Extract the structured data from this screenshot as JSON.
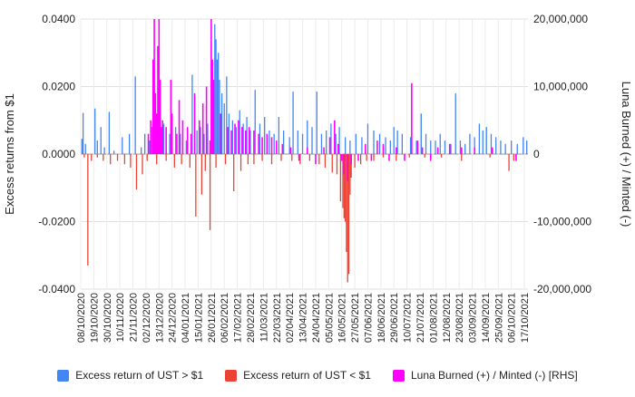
{
  "chart_data": {
    "type": "bar",
    "title": "",
    "ylabel": "Excess returns from $1",
    "y2label": "Luna Burned (+) / Minted (-)",
    "ylim": [
      -0.04,
      0.04
    ],
    "y2lim": [
      -20000000,
      20000000
    ],
    "yticks": [
      "0.0400",
      "0.0200",
      "0.0000",
      "-0.0200",
      "-0.0400"
    ],
    "y2ticks": [
      "20,000,000",
      "10,000,000",
      "0",
      "-10,000,000",
      "-20,000,000"
    ],
    "grid": true,
    "legend_position": "bottom",
    "xtick_labels": [
      "08/10/2020",
      "19/10/2020",
      "30/10/2020",
      "10/11/2020",
      "21/11/2020",
      "02/12/2020",
      "13/12/2020",
      "24/12/2020",
      "04/01/2021",
      "15/01/2021",
      "26/01/2021",
      "06/02/2021",
      "17/02/2021",
      "28/02/2021",
      "11/03/2021",
      "22/03/2021",
      "02/04/2021",
      "13/04/2021",
      "24/04/2021",
      "05/05/2021",
      "16/05/2021",
      "27/05/2021",
      "07/06/2021",
      "18/06/2021",
      "29/06/2021",
      "10/07/2021",
      "21/07/2021",
      "01/08/2021",
      "12/08/2021",
      "23/08/2021",
      "03/09/2021",
      "14/09/2021",
      "25/09/2021",
      "06/10/2021",
      "17/10/2021"
    ],
    "x_start": "08/10/2020",
    "x_end": "20/10/2021",
    "series": [
      {
        "name": "Excess return of UST > $1",
        "axis": "left",
        "color": "#4285f4",
        "points": [
          [
            "09/10/2020",
            0.0045
          ],
          [
            "10/10/2020",
            0.0122
          ],
          [
            "12/10/2020",
            0.003
          ],
          [
            "20/10/2020",
            0.0135
          ],
          [
            "22/10/2020",
            0.004
          ],
          [
            "25/10/2020",
            0.008
          ],
          [
            "28/10/2020",
            0.002
          ],
          [
            "01/11/2020",
            0.0125
          ],
          [
            "05/11/2020",
            0.001
          ],
          [
            "12/11/2020",
            0.005
          ],
          [
            "18/11/2020",
            0.006
          ],
          [
            "23/11/2020",
            0.023
          ],
          [
            "28/11/2020",
            0.002
          ],
          [
            "01/12/2020",
            0.006
          ],
          [
            "05/12/2020",
            0.004
          ],
          [
            "07/12/2020",
            0.008
          ],
          [
            "10/12/2020",
            0.005
          ],
          [
            "13/12/2020",
            0.01
          ],
          [
            "17/12/2020",
            0.009
          ],
          [
            "22/12/2020",
            0.006
          ],
          [
            "27/12/2020",
            0.008
          ],
          [
            "31/12/2020",
            0.006
          ],
          [
            "05/01/2021",
            0.004
          ],
          [
            "10/01/2021",
            0.0235
          ],
          [
            "14/01/2021",
            0.007
          ],
          [
            "17/01/2021",
            0.008
          ],
          [
            "20/01/2021",
            0.006
          ],
          [
            "23/01/2021",
            0.009
          ],
          [
            "27/01/2021",
            0.012
          ],
          [
            "29/01/2021",
            0.0385
          ],
          [
            "30/01/2021",
            0.034
          ],
          [
            "31/01/2021",
            0.028
          ],
          [
            "01/02/2021",
            0.03
          ],
          [
            "02/02/2021",
            0.022
          ],
          [
            "04/02/2021",
            0.018
          ],
          [
            "06/02/2021",
            0.015
          ],
          [
            "08/02/2021",
            0.023
          ],
          [
            "10/02/2021",
            0.012
          ],
          [
            "13/02/2021",
            0.01
          ],
          [
            "16/02/2021",
            0.008
          ],
          [
            "19/02/2021",
            0.013
          ],
          [
            "22/02/2021",
            0.009
          ],
          [
            "25/02/2021",
            0.011
          ],
          [
            "28/02/2021",
            0.007
          ],
          [
            "04/03/2021",
            0.019
          ],
          [
            "08/03/2021",
            0.009
          ],
          [
            "12/03/2021",
            0.011
          ],
          [
            "16/03/2021",
            0.007
          ],
          [
            "20/03/2021",
            0.006
          ],
          [
            "24/03/2021",
            0.011
          ],
          [
            "28/03/2021",
            0.007
          ],
          [
            "02/04/2021",
            0.005
          ],
          [
            "05/04/2021",
            0.0185
          ],
          [
            "09/04/2021",
            0.007
          ],
          [
            "13/04/2021",
            0.006
          ],
          [
            "17/04/2021",
            0.01
          ],
          [
            "21/04/2021",
            0.008
          ],
          [
            "25/04/2021",
            0.0185
          ],
          [
            "29/04/2021",
            0.006
          ],
          [
            "03/05/2021",
            0.007
          ],
          [
            "07/05/2021",
            0.009
          ],
          [
            "11/05/2021",
            0.006
          ],
          [
            "14/05/2021",
            0.008
          ],
          [
            "19/05/2021",
            0.005
          ],
          [
            "23/05/2021",
            0.004
          ],
          [
            "28/05/2021",
            0.006
          ],
          [
            "02/06/2021",
            0.005
          ],
          [
            "07/06/2021",
            0.009
          ],
          [
            "12/06/2021",
            0.007
          ],
          [
            "17/06/2021",
            0.006
          ],
          [
            "22/06/2021",
            0.005
          ],
          [
            "26/06/2021",
            0.004
          ],
          [
            "29/06/2021",
            0.008
          ],
          [
            "02/07/2021",
            0.007
          ],
          [
            "06/07/2021",
            0.006
          ],
          [
            "13/07/2021",
            0.005
          ],
          [
            "18/07/2021",
            0.004
          ],
          [
            "22/07/2021",
            0.012
          ],
          [
            "26/07/2021",
            0.006
          ],
          [
            "30/07/2021",
            0.004
          ],
          [
            "03/08/2021",
            0.004
          ],
          [
            "07/08/2021",
            0.006
          ],
          [
            "11/08/2021",
            0.004
          ],
          [
            "16/08/2021",
            0.003
          ],
          [
            "20/08/2021",
            0.018
          ],
          [
            "24/08/2021",
            0.004
          ],
          [
            "28/08/2021",
            0.003
          ],
          [
            "01/09/2021",
            0.006
          ],
          [
            "05/09/2021",
            0.005
          ],
          [
            "09/09/2021",
            0.009
          ],
          [
            "12/09/2021",
            0.007
          ],
          [
            "15/09/2021",
            0.008
          ],
          [
            "19/09/2021",
            0.006
          ],
          [
            "23/09/2021",
            0.005
          ],
          [
            "27/09/2021",
            0.004
          ],
          [
            "01/10/2021",
            0.003
          ],
          [
            "06/10/2021",
            0.004
          ],
          [
            "11/10/2021",
            0.003
          ],
          [
            "16/10/2021",
            0.005
          ],
          [
            "19/10/2021",
            0.004
          ]
        ]
      },
      {
        "name": "Excess return of UST < $1",
        "axis": "left",
        "color": "#ea4335",
        "points": [
          [
            "11/10/2020",
            -0.001
          ],
          [
            "14/10/2020",
            -0.033
          ],
          [
            "17/10/2020",
            -0.002
          ],
          [
            "22/10/2020",
            -0.001
          ],
          [
            "27/10/2020",
            -0.002
          ],
          [
            "02/11/2020",
            -0.003
          ],
          [
            "08/11/2020",
            -0.002
          ],
          [
            "14/11/2020",
            -0.003
          ],
          [
            "19/11/2020",
            -0.004
          ],
          [
            "24/11/2020",
            -0.0105
          ],
          [
            "29/11/2020",
            -0.006
          ],
          [
            "03/12/2020",
            -0.002
          ],
          [
            "11/12/2020",
            -0.003
          ],
          [
            "19/12/2020",
            -0.002
          ],
          [
            "26/12/2020",
            -0.004
          ],
          [
            "01/01/2021",
            -0.003
          ],
          [
            "08/01/2021",
            -0.004
          ],
          [
            "13/01/2021",
            -0.0185
          ],
          [
            "18/01/2021",
            -0.012
          ],
          [
            "21/01/2021",
            -0.005
          ],
          [
            "25/01/2021",
            -0.0225
          ],
          [
            "30/01/2021",
            -0.004
          ],
          [
            "07/02/2021",
            -0.003
          ],
          [
            "14/02/2021",
            -0.011
          ],
          [
            "20/02/2021",
            -0.005
          ],
          [
            "26/02/2021",
            -0.003
          ],
          [
            "03/03/2021",
            -0.003
          ],
          [
            "10/03/2021",
            -0.002
          ],
          [
            "18/03/2021",
            -0.003
          ],
          [
            "26/03/2021",
            -0.002
          ],
          [
            "04/04/2021",
            -0.002
          ],
          [
            "11/04/2021",
            -0.003
          ],
          [
            "19/04/2021",
            -0.002
          ],
          [
            "27/04/2021",
            -0.003
          ],
          [
            "02/05/2021",
            -0.004
          ],
          [
            "08/05/2021",
            -0.0055
          ],
          [
            "12/05/2021",
            -0.006
          ],
          [
            "15/05/2021",
            -0.014
          ],
          [
            "17/05/2021",
            -0.016
          ],
          [
            "18/05/2021",
            -0.019
          ],
          [
            "19/05/2021",
            -0.02
          ],
          [
            "20/05/2021",
            -0.029
          ],
          [
            "21/05/2021",
            -0.038
          ],
          [
            "22/05/2021",
            -0.0355
          ],
          [
            "23/05/2021",
            -0.012
          ],
          [
            "24/05/2021",
            -0.007
          ],
          [
            "27/05/2021",
            -0.004
          ],
          [
            "01/06/2021",
            -0.003
          ],
          [
            "06/06/2021",
            -0.002
          ],
          [
            "12/06/2021",
            -0.002
          ],
          [
            "20/06/2021",
            -0.001
          ],
          [
            "01/07/2021",
            -0.002
          ],
          [
            "12/07/2021",
            -0.001
          ],
          [
            "25/07/2021",
            -0.001
          ],
          [
            "08/08/2021",
            -0.001
          ],
          [
            "25/08/2021",
            -0.002
          ],
          [
            "18/09/2021",
            -0.001
          ],
          [
            "04/10/2021",
            -0.005
          ],
          [
            "08/10/2021",
            -0.002
          ]
        ]
      },
      {
        "name": "Luna Burned (+) / Minted (-) [RHS]",
        "axis": "right",
        "color": "#ff00ff",
        "points": [
          [
            "04/12/2020",
            3000000
          ],
          [
            "06/12/2020",
            5000000
          ],
          [
            "08/12/2020",
            14000000
          ],
          [
            "09/12/2020",
            20000000
          ],
          [
            "10/12/2020",
            9000000
          ],
          [
            "11/12/2020",
            6000000
          ],
          [
            "12/12/2020",
            16000000
          ],
          [
            "13/12/2020",
            20000000
          ],
          [
            "14/12/2020",
            11000000
          ],
          [
            "15/12/2020",
            4000000
          ],
          [
            "16/12/2020",
            5000000
          ],
          [
            "19/12/2020",
            4000000
          ],
          [
            "23/12/2020",
            11000000
          ],
          [
            "24/12/2020",
            6000000
          ],
          [
            "28/12/2020",
            3000000
          ],
          [
            "30/12/2020",
            8000000
          ],
          [
            "02/01/2021",
            5000000
          ],
          [
            "06/01/2021",
            4000000
          ],
          [
            "09/01/2021",
            3000000
          ],
          [
            "12/01/2021",
            9000000
          ],
          [
            "16/01/2021",
            5000000
          ],
          [
            "19/01/2021",
            7500000
          ],
          [
            "22/01/2021",
            10000000
          ],
          [
            "25/01/2021",
            2000000
          ],
          [
            "26/01/2021",
            20000000
          ],
          [
            "27/01/2021",
            14000000
          ],
          [
            "28/01/2021",
            11000000
          ],
          [
            "03/02/2021",
            6000000
          ],
          [
            "09/02/2021",
            4000000
          ],
          [
            "12/02/2021",
            3500000
          ],
          [
            "15/02/2021",
            4500000
          ],
          [
            "18/02/2021",
            5000000
          ],
          [
            "21/02/2021",
            4000000
          ],
          [
            "24/02/2021",
            3500000
          ],
          [
            "27/02/2021",
            4000000
          ],
          [
            "03/03/2021",
            3500000
          ],
          [
            "07/03/2021",
            3000000
          ],
          [
            "10/03/2021",
            2500000
          ],
          [
            "14/03/2021",
            3000000
          ],
          [
            "18/03/2021",
            2500000
          ],
          [
            "22/03/2021",
            2000000
          ],
          [
            "27/03/2021",
            1500000
          ],
          [
            "03/04/2021",
            1000000
          ],
          [
            "10/04/2021",
            -1000000
          ],
          [
            "17/04/2021",
            1000000
          ],
          [
            "24/04/2021",
            -1500000
          ],
          [
            "01/05/2021",
            1000000
          ],
          [
            "06/05/2021",
            2500000
          ],
          [
            "10/05/2021",
            5000000
          ],
          [
            "13/05/2021",
            1500000
          ],
          [
            "16/05/2021",
            -1000000
          ],
          [
            "18/05/2021",
            -3000000
          ],
          [
            "21/05/2021",
            -4000000
          ],
          [
            "24/05/2021",
            -1500000
          ],
          [
            "30/05/2021",
            -1000000
          ],
          [
            "05/06/2021",
            1500000
          ],
          [
            "10/06/2021",
            -1000000
          ],
          [
            "15/06/2021",
            2000000
          ],
          [
            "20/06/2021",
            1500000
          ],
          [
            "25/06/2021",
            -1000000
          ],
          [
            "01/07/2021",
            1000000
          ],
          [
            "08/07/2021",
            -1000000
          ],
          [
            "14/07/2021",
            10500000
          ],
          [
            "19/07/2021",
            2000000
          ],
          [
            "23/07/2021",
            1000000
          ],
          [
            "30/07/2021",
            -1000000
          ],
          [
            "05/08/2021",
            1000000
          ],
          [
            "15/08/2021",
            1500000
          ],
          [
            "25/08/2021",
            1000000
          ],
          [
            "05/09/2021",
            1000000
          ],
          [
            "20/09/2021",
            1000000
          ],
          [
            "10/10/2021",
            -1000000
          ]
        ]
      }
    ]
  }
}
